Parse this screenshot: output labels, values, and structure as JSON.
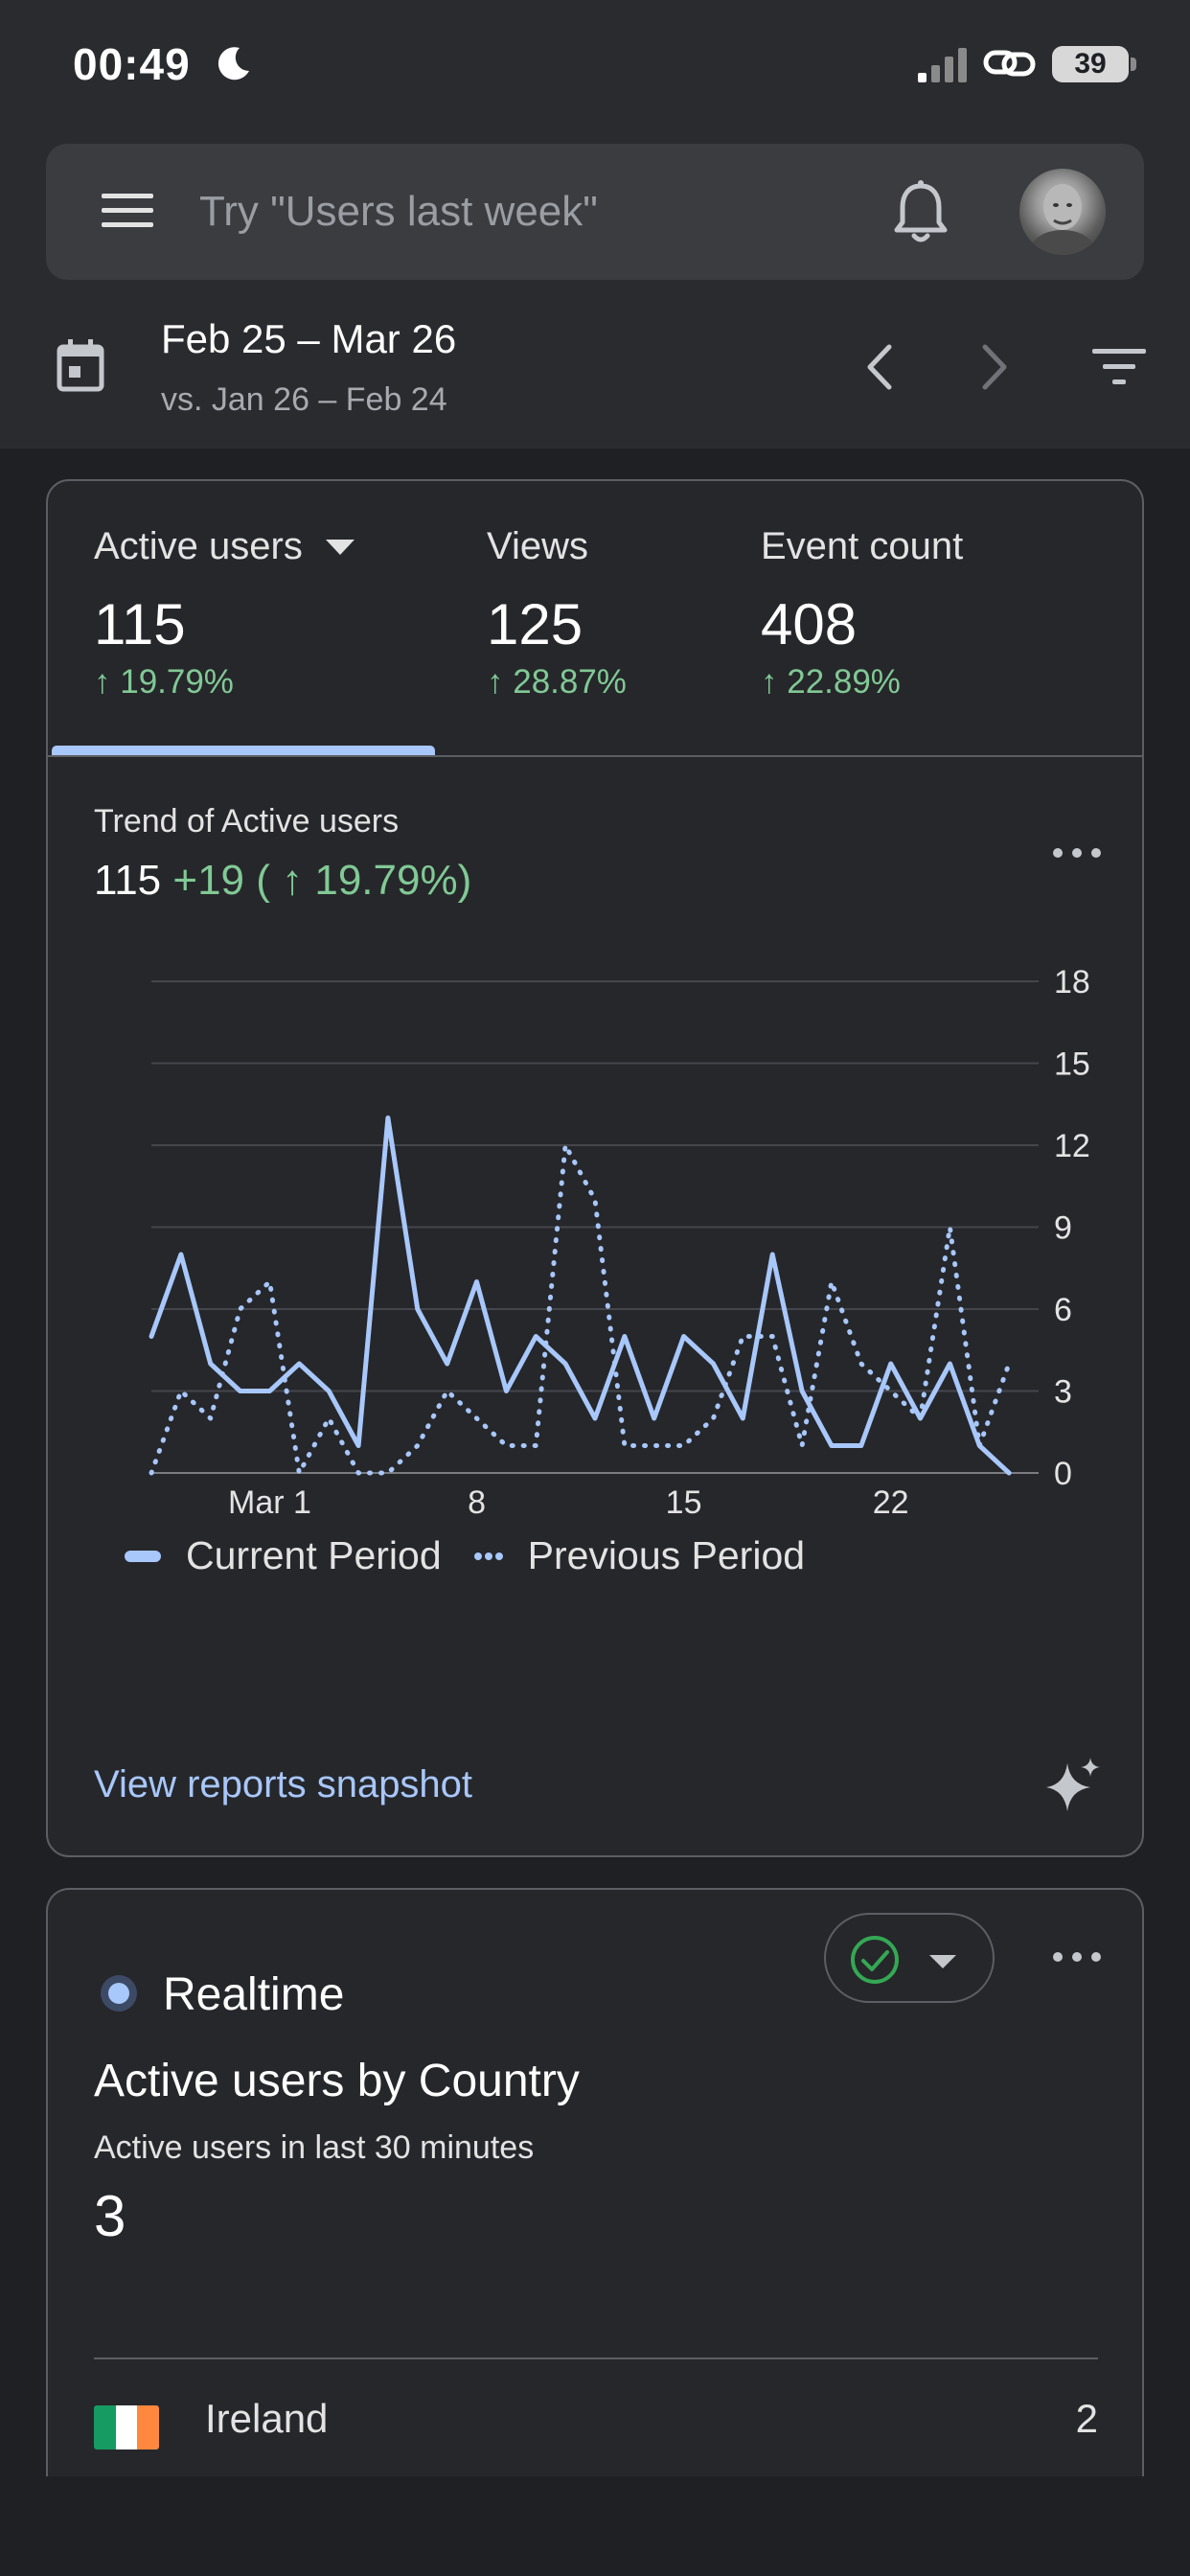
{
  "status_bar": {
    "time": "00:49",
    "battery": "39"
  },
  "search": {
    "placeholder": "Try \"Users last week\""
  },
  "date_bar": {
    "range": "Feb 25 – Mar 26",
    "compare": "vs. Jan 26 – Feb 24"
  },
  "metrics": [
    {
      "label": "Active users",
      "value": "115",
      "change": "↑ 19.79%"
    },
    {
      "label": "Views",
      "value": "125",
      "change": "↑ 28.87%"
    },
    {
      "label": "Event count",
      "value": "408",
      "change": "↑ 22.89%"
    }
  ],
  "trend": {
    "title": "Trend of Active users",
    "value": "115",
    "change": "+19 ( ↑ 19.79%)"
  },
  "chart_data": {
    "type": "line",
    "x": [
      1,
      2,
      3,
      4,
      5,
      6,
      7,
      8,
      9,
      10,
      11,
      12,
      13,
      14,
      15,
      16,
      17,
      18,
      19,
      20,
      21,
      22,
      23,
      24,
      25,
      26,
      27,
      28,
      29,
      30,
      31
    ],
    "x_ticks": [
      {
        "x": 5,
        "label": "Mar 1"
      },
      {
        "x": 12,
        "label": "8"
      },
      {
        "x": 19,
        "label": "15"
      },
      {
        "x": 26,
        "label": "22"
      }
    ],
    "y_ticks": [
      0,
      3,
      6,
      9,
      12,
      15,
      18
    ],
    "ylim": [
      0,
      18
    ],
    "grid": true,
    "legend": "bottom-left",
    "series": [
      {
        "name": "Current Period",
        "style": "solid",
        "color": "#a8c7fa",
        "values": [
          5,
          8,
          4,
          3,
          3,
          4,
          3,
          1,
          13,
          6,
          4,
          7,
          3,
          5,
          4,
          2,
          5,
          2,
          5,
          4,
          2,
          8,
          3,
          1,
          1,
          4,
          2,
          4,
          1,
          0,
          null
        ]
      },
      {
        "name": "Previous Period",
        "style": "dotted",
        "color": "#a8c7fa",
        "values": [
          0,
          3,
          2,
          6,
          7,
          0,
          2,
          0,
          0,
          1,
          3,
          2,
          1,
          1,
          12,
          10,
          1,
          1,
          1,
          2,
          5,
          5,
          1,
          7,
          4,
          3,
          2,
          9,
          1,
          4,
          null
        ]
      }
    ]
  },
  "card1_link": "View reports snapshot",
  "realtime": {
    "label": "Realtime",
    "title": "Active users by Country",
    "subtitle": "Active users in last 30 minutes",
    "value": "3",
    "rows": [
      {
        "country": "Ireland",
        "value": "2"
      }
    ]
  },
  "colors": {
    "accent": "#a8c7fa",
    "positive": "#81c995",
    "background": "#1f2024",
    "card": "#26272b"
  }
}
